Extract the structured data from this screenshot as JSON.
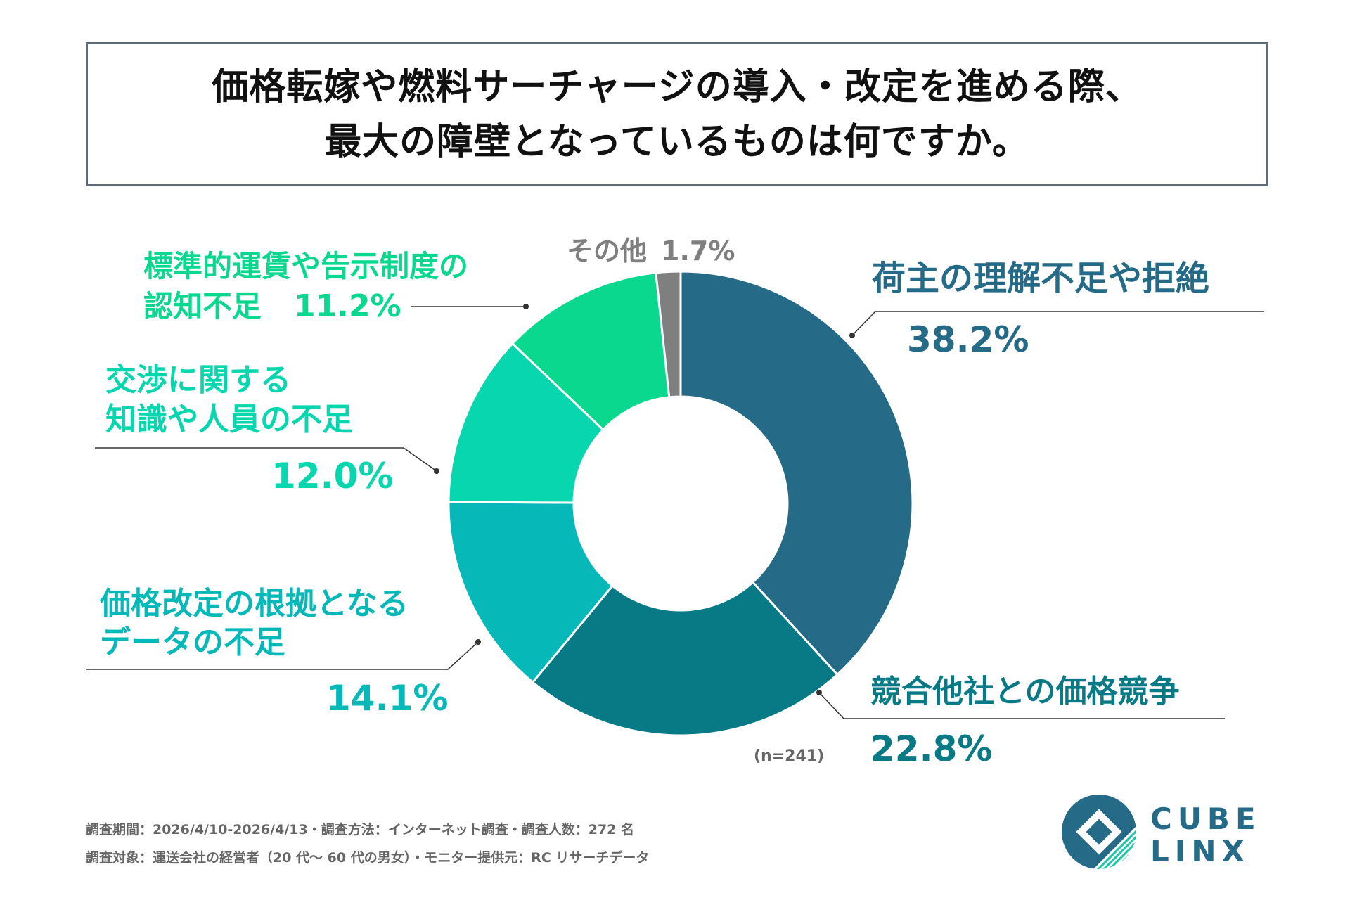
{
  "title": {
    "line1": "価格転嫁や燃料サーチャージの導入・改定を進める際、",
    "line2": "最大の障壁となっているものは何ですか。"
  },
  "chart_data": {
    "type": "pie",
    "donut": true,
    "categories": [
      "荷主の理解不足や拒絶",
      "競合他社との価格競争",
      "価格改定の根拠となるデータの不足",
      "交渉に関する知識や人員の不足",
      "標準的運賃や告示制度の認知不足",
      "その他"
    ],
    "values": [
      38.2,
      22.8,
      14.1,
      12.0,
      11.2,
      1.7
    ],
    "value_labels": [
      "38.2%",
      "22.8%",
      "14.1%",
      "12.0%",
      "11.2%",
      "1.7%"
    ],
    "colors": [
      "#256a86",
      "#087a86",
      "#06b8b8",
      "#08d6ae",
      "#09d88e",
      "#7f7f7f"
    ],
    "sample_size": "(n=241)"
  },
  "labels": {
    "s0": {
      "line1": "荷主の理解不足や拒絶"
    },
    "s1": {
      "line1": "競合他社との価格競争"
    },
    "s2": {
      "line1": "価格改定の根拠となる",
      "line2": "データの不足"
    },
    "s3": {
      "line1": "交渉に関する",
      "line2": "知識や人員の不足"
    },
    "s4": {
      "line1": "標準的運賃や告示制度の",
      "line2": "認知不足"
    },
    "s5": {
      "line1": "その他"
    }
  },
  "footer": {
    "line1": "調査期間：2026/4/10-2026/4/13・調査方法：インターネット調査・調査人数：272 名",
    "line2": "調査対象：運送会社の経営者（20 代〜 60 代の男女）・モニター提供元：RC リサーチデータ"
  },
  "logo": {
    "line1": "CUBE",
    "line2": "LINX"
  }
}
